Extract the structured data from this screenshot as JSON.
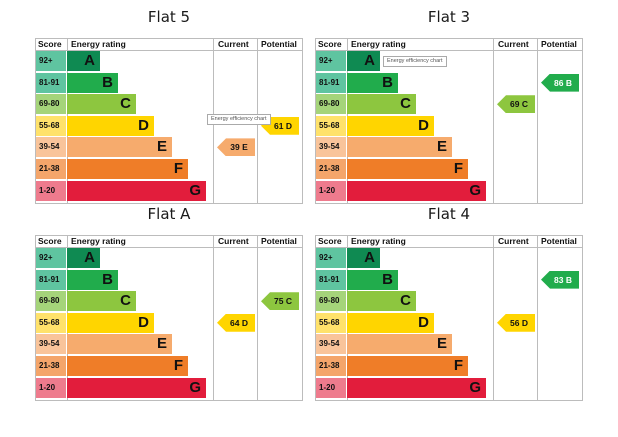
{
  "headers": {
    "score": "Score",
    "rating": "Energy rating",
    "current": "Current",
    "potential": "Potential"
  },
  "bands": [
    {
      "range": "92+",
      "letter": "A",
      "color": "#0f8a52",
      "score_bg": "#5fc4a0"
    },
    {
      "range": "81-91",
      "letter": "B",
      "color": "#21ac4c",
      "score_bg": "#5fc4a0"
    },
    {
      "range": "69-80",
      "letter": "C",
      "color": "#8dc63f",
      "score_bg": "#a5d47a"
    },
    {
      "range": "55-68",
      "letter": "D",
      "color": "#ffd500",
      "score_bg": "#ffe26b"
    },
    {
      "range": "39-54",
      "letter": "E",
      "color": "#f6ab6d",
      "score_bg": "#f9c49a"
    },
    {
      "range": "21-38",
      "letter": "F",
      "color": "#ef7d28",
      "score_bg": "#f4a56a"
    },
    {
      "range": "1-20",
      "letter": "G",
      "color": "#e21d3c",
      "score_bg": "#ee7b8d"
    }
  ],
  "tooltip_text": "Energy efficiency chart",
  "charts": [
    {
      "title": "Flat 5",
      "current": {
        "value": 39,
        "band": "E",
        "label": "39  E"
      },
      "potential": {
        "value": 61,
        "band": "D",
        "label": "61  D"
      },
      "tooltip": "current"
    },
    {
      "title": "Flat 3",
      "current": {
        "value": 69,
        "band": "C",
        "label": "69  C"
      },
      "potential": {
        "value": 86,
        "band": "B",
        "label": "86  B"
      },
      "tooltip": "rating"
    },
    {
      "title": "Flat A",
      "current": {
        "value": 64,
        "band": "D",
        "label": "64  D"
      },
      "potential": {
        "value": 75,
        "band": "C",
        "label": "75  C"
      },
      "tooltip": ""
    },
    {
      "title": "Flat 4",
      "current": {
        "value": 56,
        "band": "D",
        "label": "56  D"
      },
      "potential": {
        "value": 83,
        "band": "B",
        "label": "83  B"
      },
      "tooltip": ""
    }
  ]
}
